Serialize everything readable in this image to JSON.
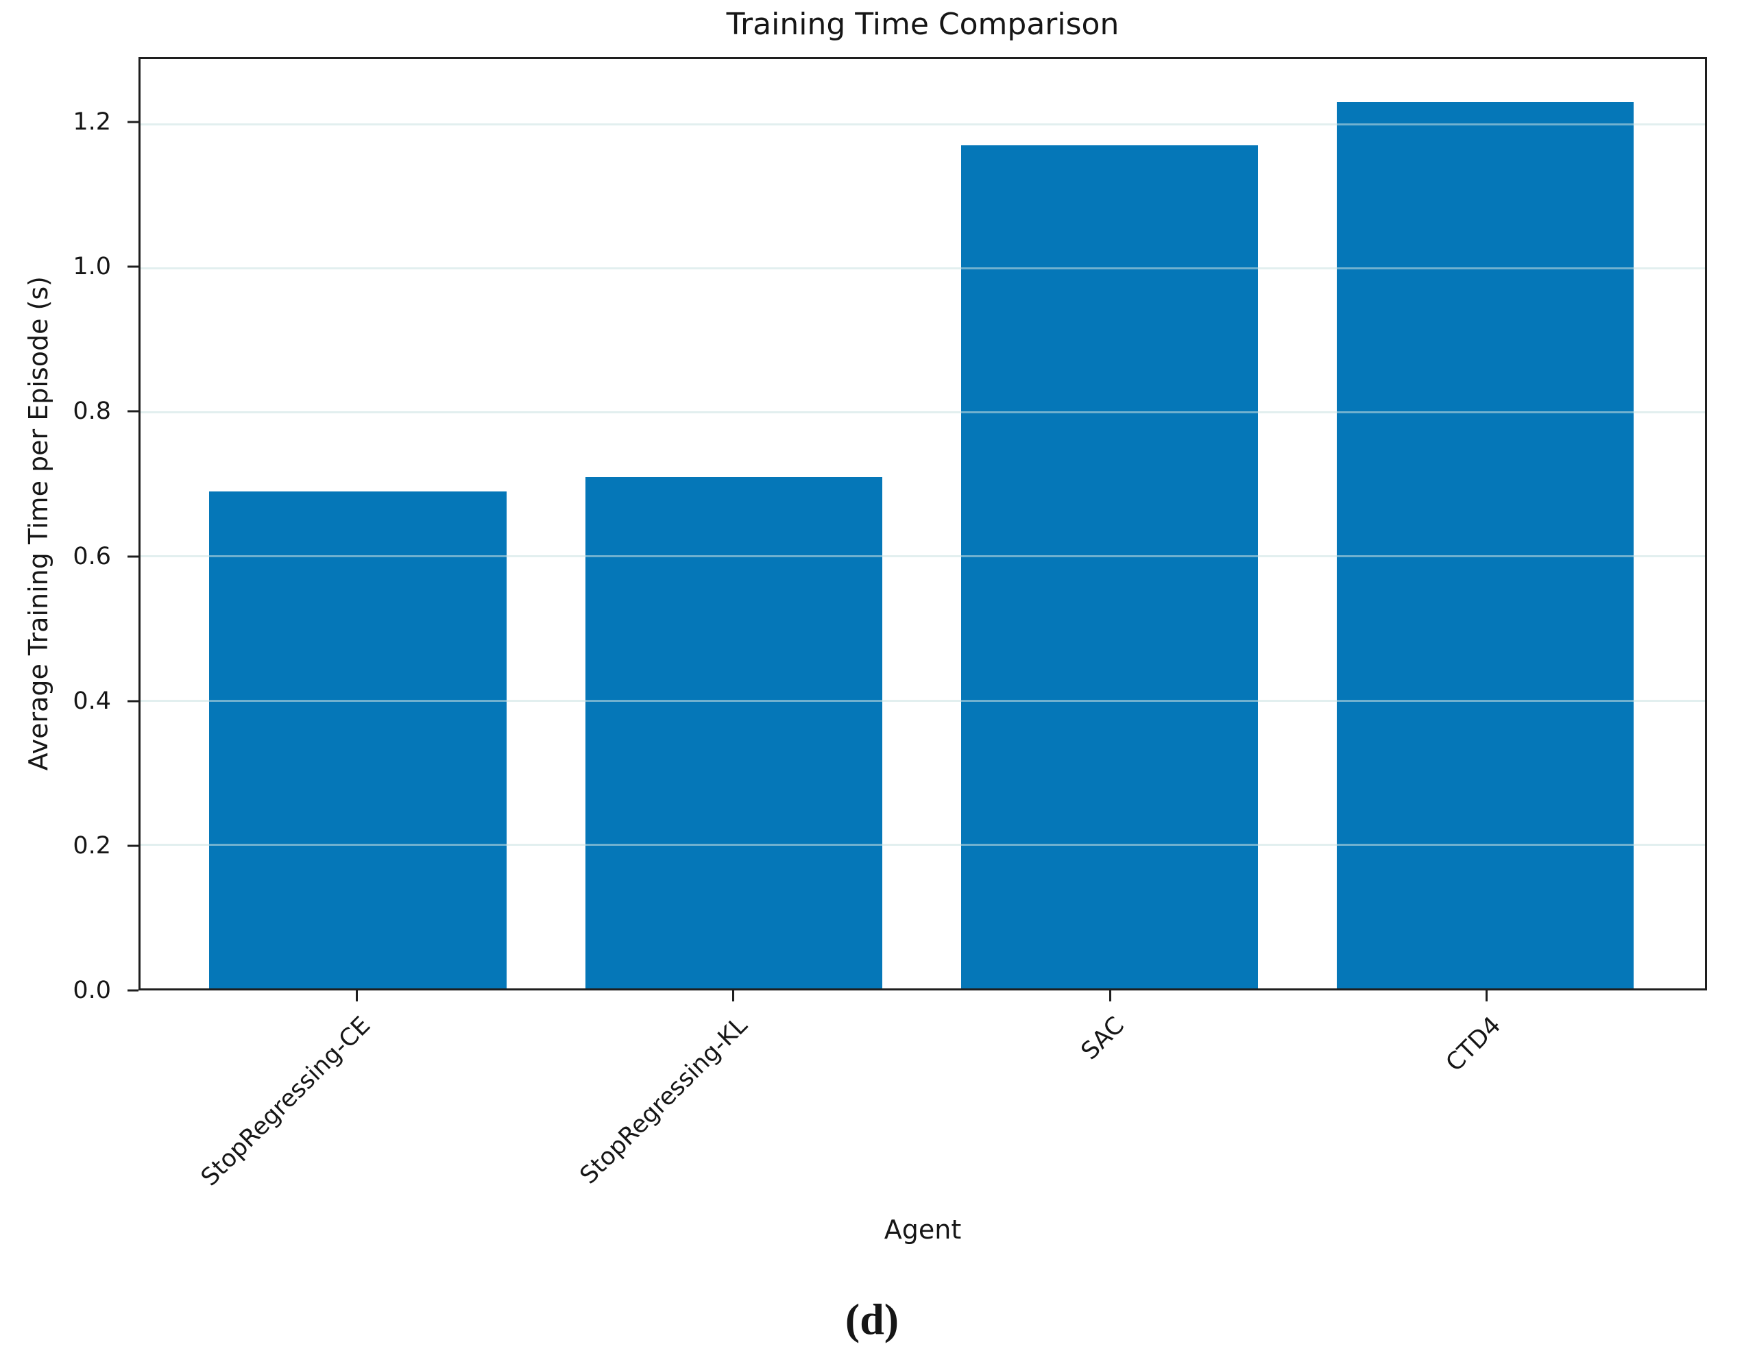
{
  "figure": {
    "caption": "(d)"
  },
  "chart_data": {
    "type": "bar",
    "title": "Training Time Comparison",
    "xlabel": "Agent",
    "ylabel": "Average Training Time per Episode (s)",
    "categories": [
      "StopRegressing-CE",
      "StopRegressing-KL",
      "SAC",
      "CTD4"
    ],
    "values": [
      0.69,
      0.71,
      1.17,
      1.23
    ],
    "ylim": [
      0,
      1.29
    ],
    "yticks": [
      0.0,
      0.2,
      0.4,
      0.6,
      0.8,
      1.0,
      1.2
    ],
    "ytick_labels": [
      "0.0",
      "0.2",
      "0.4",
      "0.6",
      "0.8",
      "1.0",
      "1.2"
    ],
    "bar_color": "#0577b8",
    "axis_color": "#1e1e1e",
    "gridline_color": "rgba(202,226,226,0.55)",
    "grid": true,
    "legend": "none",
    "xtick_rotation_deg": 45
  }
}
